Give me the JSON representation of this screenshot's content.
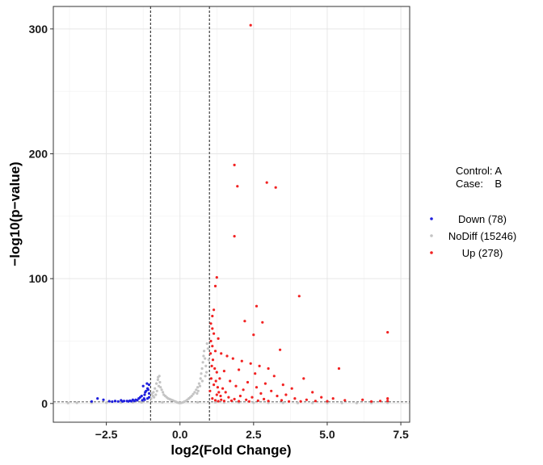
{
  "chart_data": {
    "type": "scatter",
    "title": "",
    "xlabel": "log2(Fold Change)",
    "ylabel": "−log10(p−value)",
    "xlim": [
      -4.3,
      7.8
    ],
    "ylim": [
      -15,
      318
    ],
    "xticks": [
      -2.5,
      0.0,
      2.5,
      5.0,
      7.5
    ],
    "xtick_labels": [
      "−2.5",
      "0.0",
      "2.5",
      "5.0",
      "7.5"
    ],
    "yticks": [
      0,
      100,
      200,
      300
    ],
    "ytick_labels": [
      "0",
      "100",
      "200",
      "300"
    ],
    "grid": true,
    "vlines": [
      -1,
      1
    ],
    "hline": 1.3,
    "legend_position": "right",
    "legend_header": [
      "Control: A",
      "Case:    B"
    ],
    "colors": {
      "Down": "#1f1fdd",
      "NoDiff": "#c4c4c4",
      "Up": "#f22222"
    },
    "series": [
      {
        "name": "Down (78)",
        "group": "Down",
        "points": [
          [
            -1.05,
            15
          ],
          [
            -1.1,
            12
          ],
          [
            -1.15,
            10
          ],
          [
            -1.05,
            8
          ],
          [
            -1.2,
            7
          ],
          [
            -1.25,
            14
          ],
          [
            -1.3,
            6
          ],
          [
            -1.35,
            5
          ],
          [
            -1.1,
            4
          ],
          [
            -1.4,
            4
          ],
          [
            -1.5,
            3
          ],
          [
            -1.6,
            3
          ],
          [
            -1.2,
            3
          ],
          [
            -1.05,
            5
          ],
          [
            -1.08,
            11
          ],
          [
            -1.12,
            16
          ],
          [
            -1.18,
            9
          ],
          [
            -1.22,
            4
          ],
          [
            -1.28,
            2.5
          ],
          [
            -1.45,
            2.5
          ],
          [
            -1.7,
            2.2
          ],
          [
            -1.8,
            2
          ],
          [
            -1.9,
            2
          ],
          [
            -2.0,
            2.5
          ],
          [
            -2.2,
            2
          ],
          [
            -2.4,
            1.8
          ],
          [
            -2.6,
            3
          ],
          [
            -2.8,
            4
          ],
          [
            -3.0,
            1.6
          ],
          [
            -1.55,
            2
          ],
          [
            -1.65,
            1.8
          ],
          [
            -1.75,
            1.7
          ],
          [
            -1.95,
            1.6
          ],
          [
            -2.1,
            1.6
          ],
          [
            -2.3,
            1.5
          ]
        ]
      },
      {
        "name": "NoDiff (15246)",
        "group": "NoDiff",
        "points": [
          [
            -0.7,
            22
          ],
          [
            -0.75,
            19
          ],
          [
            -0.8,
            16
          ],
          [
            -0.72,
            14
          ],
          [
            -0.85,
            12
          ],
          [
            -0.78,
            10
          ],
          [
            -0.9,
            9
          ],
          [
            -0.95,
            8
          ],
          [
            -0.66,
            13
          ],
          [
            -0.62,
            11
          ],
          [
            -0.58,
            9
          ],
          [
            -0.55,
            7
          ],
          [
            -0.5,
            6
          ],
          [
            -0.45,
            5
          ],
          [
            -0.4,
            4
          ],
          [
            -0.35,
            3.5
          ],
          [
            -0.3,
            3
          ],
          [
            -0.25,
            2.5
          ],
          [
            -0.2,
            2
          ],
          [
            -0.15,
            1.5
          ],
          [
            -0.1,
            1
          ],
          [
            -0.05,
            0.5
          ],
          [
            -0.92,
            6
          ],
          [
            -0.88,
            5
          ],
          [
            -0.82,
            7
          ],
          [
            -0.98,
            4
          ],
          [
            -0.68,
            17
          ],
          [
            -0.74,
            21
          ],
          [
            0.0,
            0.3
          ],
          [
            0.05,
            0.5
          ],
          [
            0.1,
            1
          ],
          [
            0.15,
            1.5
          ],
          [
            0.2,
            2
          ],
          [
            0.25,
            3
          ],
          [
            0.3,
            4
          ],
          [
            0.35,
            5
          ],
          [
            0.4,
            6
          ],
          [
            0.45,
            7.5
          ],
          [
            0.5,
            9
          ],
          [
            0.55,
            11
          ],
          [
            0.6,
            13
          ],
          [
            0.65,
            16
          ],
          [
            0.7,
            20
          ],
          [
            0.72,
            24
          ],
          [
            0.75,
            28
          ],
          [
            0.78,
            33
          ],
          [
            0.8,
            38
          ],
          [
            0.82,
            42
          ],
          [
            0.85,
            36
          ],
          [
            0.88,
            30
          ],
          [
            0.9,
            25
          ],
          [
            0.92,
            48
          ],
          [
            0.95,
            44
          ],
          [
            0.98,
            35
          ],
          [
            0.86,
            22
          ],
          [
            0.76,
            18
          ],
          [
            0.68,
            14
          ],
          [
            0.62,
            10
          ],
          [
            0.58,
            8
          ],
          [
            -1.6,
            1
          ],
          [
            -2.0,
            0.8
          ],
          [
            -2.5,
            0.6
          ],
          [
            -3.0,
            0.5
          ],
          [
            -3.5,
            0.5
          ],
          [
            -3.8,
            0.4
          ],
          [
            1.2,
            1
          ],
          [
            1.5,
            0.8
          ],
          [
            2.0,
            0.7
          ],
          [
            2.5,
            0.6
          ],
          [
            3.0,
            0.5
          ],
          [
            3.5,
            0.5
          ],
          [
            4.0,
            0.4
          ],
          [
            4.5,
            0.4
          ],
          [
            5.0,
            0.4
          ],
          [
            5.5,
            0.3
          ],
          [
            6.0,
            0.3
          ],
          [
            6.5,
            0.3
          ],
          [
            7.05,
            0.6
          ],
          [
            -1.3,
            0.9
          ],
          [
            -0.6,
            1
          ],
          [
            0.6,
            1
          ]
        ]
      },
      {
        "name": "Up (278)",
        "group": "Up",
        "points": [
          [
            2.4,
            303
          ],
          [
            1.85,
            191
          ],
          [
            2.95,
            177
          ],
          [
            1.95,
            174
          ],
          [
            3.25,
            173
          ],
          [
            1.85,
            134
          ],
          [
            1.25,
            101
          ],
          [
            1.2,
            94
          ],
          [
            4.05,
            86
          ],
          [
            2.6,
            78
          ],
          [
            1.15,
            75
          ],
          [
            1.1,
            70
          ],
          [
            1.05,
            64
          ],
          [
            2.2,
            66
          ],
          [
            2.8,
            65
          ],
          [
            1.1,
            60
          ],
          [
            1.15,
            56
          ],
          [
            2.5,
            55
          ],
          [
            1.3,
            52
          ],
          [
            1.05,
            50
          ],
          [
            7.05,
            57
          ],
          [
            3.4,
            43
          ],
          [
            1.1,
            46
          ],
          [
            1.2,
            42
          ],
          [
            1.4,
            40
          ],
          [
            1.6,
            38
          ],
          [
            1.8,
            36
          ],
          [
            2.1,
            34
          ],
          [
            2.4,
            32
          ],
          [
            2.7,
            30
          ],
          [
            3.0,
            28
          ],
          [
            5.4,
            28
          ],
          [
            2.0,
            27
          ],
          [
            1.5,
            26
          ],
          [
            1.25,
            25
          ],
          [
            2.55,
            24
          ],
          [
            3.2,
            22
          ],
          [
            4.2,
            20
          ],
          [
            1.35,
            20
          ],
          [
            1.7,
            18
          ],
          [
            2.3,
            17
          ],
          [
            2.9,
            16
          ],
          [
            3.5,
            15
          ],
          [
            1.15,
            15
          ],
          [
            1.9,
            14
          ],
          [
            2.6,
            13
          ],
          [
            3.8,
            12
          ],
          [
            1.45,
            12
          ],
          [
            2.15,
            11
          ],
          [
            3.1,
            10
          ],
          [
            4.5,
            9
          ],
          [
            1.55,
            9
          ],
          [
            2.75,
            8
          ],
          [
            3.6,
            7
          ],
          [
            1.25,
            7
          ],
          [
            2.05,
            6
          ],
          [
            3.3,
            6
          ],
          [
            4.8,
            5
          ],
          [
            1.65,
            5
          ],
          [
            2.45,
            5
          ],
          [
            3.9,
            4
          ],
          [
            5.2,
            4
          ],
          [
            1.1,
            4
          ],
          [
            1.85,
            3.5
          ],
          [
            2.85,
            3.5
          ],
          [
            4.3,
            3
          ],
          [
            6.2,
            3
          ],
          [
            1.4,
            3
          ],
          [
            2.25,
            3
          ],
          [
            3.45,
            2.5
          ],
          [
            5.6,
            2.5
          ],
          [
            1.2,
            2.5
          ],
          [
            1.75,
            2.2
          ],
          [
            2.65,
            2.2
          ],
          [
            4.6,
            2
          ],
          [
            6.8,
            2
          ],
          [
            7.05,
            4
          ],
          [
            7.05,
            2
          ],
          [
            1.5,
            2
          ],
          [
            3.0,
            2
          ],
          [
            5.0,
            1.8
          ],
          [
            2.0,
            1.8
          ],
          [
            3.7,
            1.6
          ],
          [
            4.1,
            1.7
          ],
          [
            1.3,
            1.8
          ],
          [
            2.35,
            1.6
          ],
          [
            6.5,
            1.6
          ],
          [
            1.02,
            10
          ],
          [
            1.06,
            20
          ],
          [
            1.08,
            30
          ],
          [
            1.04,
            40
          ],
          [
            1.12,
            35
          ],
          [
            1.18,
            28
          ],
          [
            1.22,
            18
          ],
          [
            1.28,
            13
          ],
          [
            1.32,
            9
          ],
          [
            1.38,
            6
          ]
        ]
      }
    ]
  }
}
